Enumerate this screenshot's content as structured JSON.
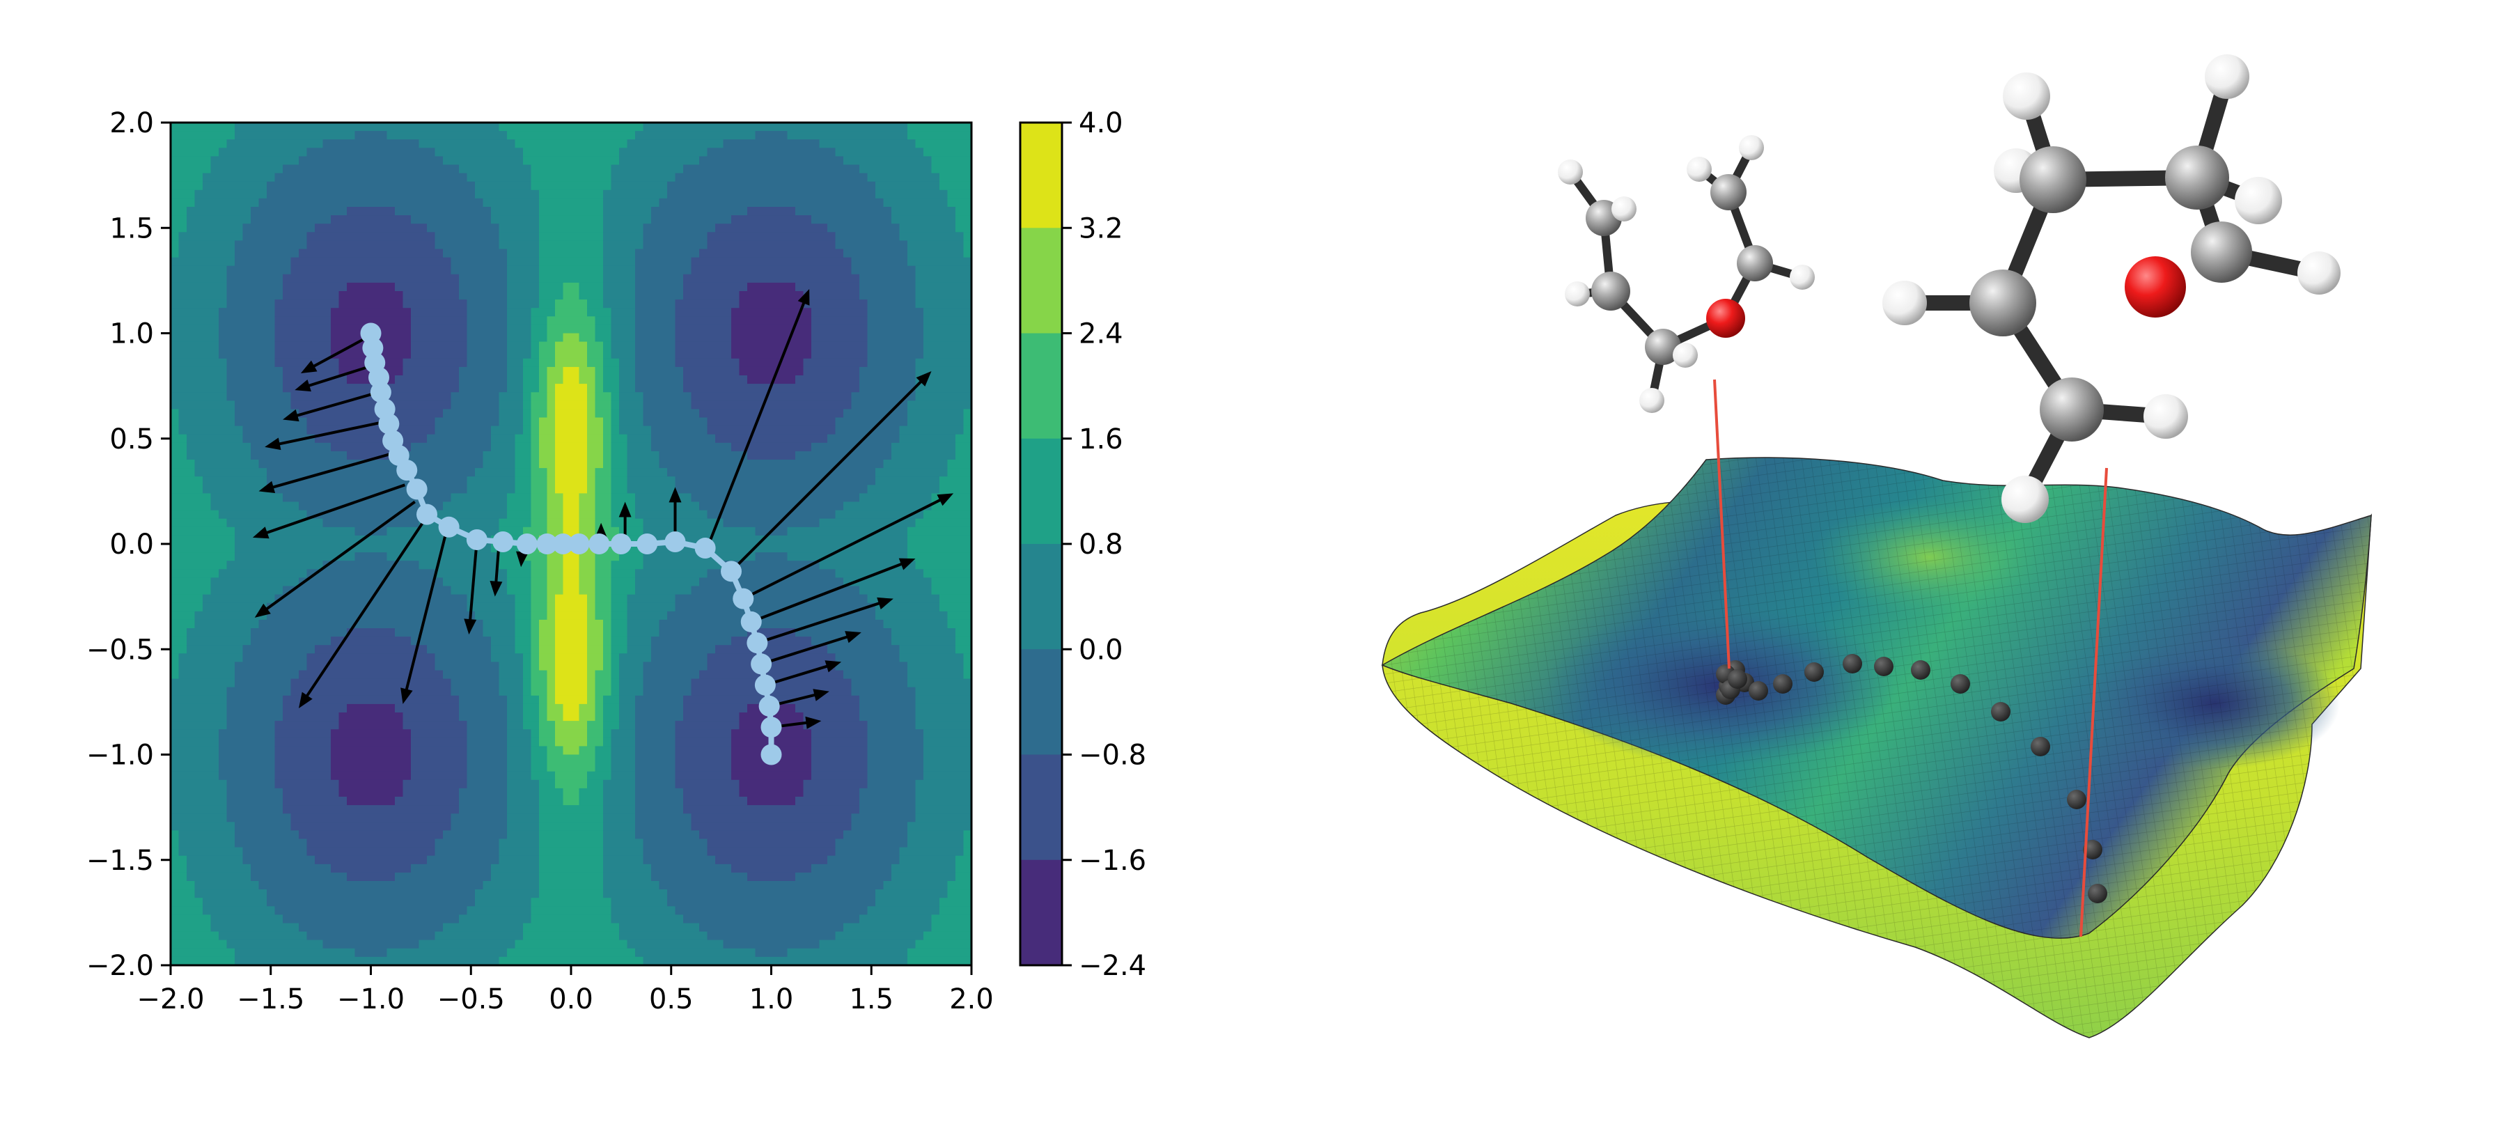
{
  "chart_data": [
    {
      "type": "heatmap",
      "subtype": "filled-contour",
      "title": "",
      "xlabel": "",
      "ylabel": "",
      "xlim": [
        -2.0,
        2.0
      ],
      "ylim": [
        -2.0,
        2.0
      ],
      "x_ticks": [
        "−2.0",
        "−1.5",
        "−1.0",
        "−0.5",
        "0.0",
        "0.5",
        "1.0",
        "1.5",
        "2.0"
      ],
      "y_ticks": [
        "2.0",
        "1.5",
        "1.0",
        "0.5",
        "0.0",
        "−0.5",
        "−1.0",
        "−1.5",
        "−2.0"
      ],
      "colormap": "viridis",
      "minima": [
        [
          -1.0,
          1.0
        ],
        [
          1.0,
          1.0
        ],
        [
          -1.0,
          -1.0
        ],
        [
          1.0,
          -1.0
        ]
      ],
      "maxima": [
        [
          0.0,
          0.63
        ],
        [
          0.0,
          -0.63
        ]
      ],
      "colorbar": {
        "levels": [
          "4.0",
          "3.2",
          "2.4",
          "1.6",
          "0.8",
          "0.0",
          "−0.8",
          "−1.6",
          "−2.4"
        ],
        "range": [
          -2.4,
          4.0
        ],
        "band_colors": [
          "#dde318",
          "#86d549",
          "#3dbc74",
          "#1fa187",
          "#25858e",
          "#2e6c8e",
          "#3b528b",
          "#472c7a"
        ]
      },
      "path": {
        "color": "#9ecae9",
        "points": [
          [
            -1.0,
            1.0
          ],
          [
            -0.99,
            0.93
          ],
          [
            -0.98,
            0.86
          ],
          [
            -0.96,
            0.79
          ],
          [
            -0.95,
            0.72
          ],
          [
            -0.93,
            0.64
          ],
          [
            -0.91,
            0.57
          ],
          [
            -0.89,
            0.49
          ],
          [
            -0.86,
            0.42
          ],
          [
            -0.82,
            0.35
          ],
          [
            -0.77,
            0.26
          ],
          [
            -0.72,
            0.14
          ],
          [
            -0.61,
            0.08
          ],
          [
            -0.47,
            0.02
          ],
          [
            -0.34,
            0.01
          ],
          [
            -0.22,
            0.0
          ],
          [
            -0.12,
            0.0
          ],
          [
            -0.04,
            0.0
          ],
          [
            0.04,
            0.0
          ],
          [
            0.14,
            0.0
          ],
          [
            0.25,
            0.0
          ],
          [
            0.38,
            0.0
          ],
          [
            0.52,
            0.01
          ],
          [
            0.67,
            -0.02
          ],
          [
            0.8,
            -0.13
          ],
          [
            0.86,
            -0.26
          ],
          [
            0.9,
            -0.37
          ],
          [
            0.93,
            -0.47
          ],
          [
            0.95,
            -0.57
          ],
          [
            0.97,
            -0.67
          ],
          [
            0.99,
            -0.77
          ],
          [
            1.0,
            -0.87
          ],
          [
            1.0,
            -1.0
          ]
        ]
      },
      "arrows": {
        "color": "#000000",
        "vectors": [
          [
            -1.0,
            0.99,
            -0.35,
            -0.18
          ],
          [
            -0.98,
            0.85,
            -0.4,
            -0.12
          ],
          [
            -0.96,
            0.72,
            -0.48,
            -0.13
          ],
          [
            -0.93,
            0.58,
            -0.6,
            -0.12
          ],
          [
            -0.89,
            0.43,
            -0.67,
            -0.18
          ],
          [
            -0.83,
            0.28,
            -0.76,
            -0.25
          ],
          [
            -0.78,
            0.2,
            -0.8,
            -0.55
          ],
          [
            -0.72,
            0.13,
            -0.64,
            -0.91
          ],
          [
            -0.62,
            0.07,
            -0.22,
            -0.83
          ],
          [
            -0.47,
            0.02,
            -0.04,
            -0.45
          ],
          [
            -0.36,
            0.0,
            -0.02,
            -0.25
          ],
          [
            -0.24,
            0.0,
            -0.01,
            -0.11
          ],
          [
            0.15,
            0.0,
            0.0,
            0.1
          ],
          [
            0.27,
            0.0,
            0.0,
            0.2
          ],
          [
            0.52,
            0.01,
            0.0,
            0.26
          ],
          [
            0.68,
            -0.02,
            0.51,
            1.23
          ],
          [
            0.8,
            -0.13,
            1.0,
            0.95
          ],
          [
            0.86,
            -0.26,
            1.05,
            0.5
          ],
          [
            0.9,
            -0.37,
            0.82,
            0.3
          ],
          [
            0.93,
            -0.47,
            0.68,
            0.21
          ],
          [
            0.95,
            -0.57,
            0.5,
            0.15
          ],
          [
            0.97,
            -0.67,
            0.38,
            0.11
          ],
          [
            0.99,
            -0.77,
            0.3,
            0.07
          ],
          [
            1.0,
            -0.87,
            0.25,
            0.03
          ]
        ]
      }
    },
    {
      "type": "surface-3d",
      "title": "",
      "colormap": "viridis",
      "surface_colors": [
        "#2b3a78",
        "#2d6b8c",
        "#25908c",
        "#3fb677",
        "#98d44a",
        "#d3e52a"
      ],
      "trajectory": {
        "color": "#333333",
        "count": 20
      },
      "molecules": [
        {
          "name": "",
          "atoms": [
            {
              "element": "C",
              "color": "#9a9a9a"
            },
            {
              "element": "C",
              "color": "#9a9a9a"
            },
            {
              "element": "C",
              "color": "#9a9a9a"
            },
            {
              "element": "C",
              "color": "#9a9a9a"
            },
            {
              "element": "O",
              "color": "#e8141e"
            },
            {
              "element": "H",
              "color": "#f4f4f4"
            }
          ]
        },
        {
          "name": "",
          "atoms": [
            {
              "element": "C",
              "color": "#9a9a9a"
            },
            {
              "element": "C",
              "color": "#9a9a9a"
            },
            {
              "element": "C",
              "color": "#9a9a9a"
            },
            {
              "element": "C",
              "color": "#9a9a9a"
            },
            {
              "element": "C",
              "color": "#9a9a9a"
            },
            {
              "element": "O",
              "color": "#e8141e"
            },
            {
              "element": "H",
              "color": "#f4f4f4"
            }
          ]
        }
      ],
      "connector_color": "#e74c3c"
    }
  ]
}
